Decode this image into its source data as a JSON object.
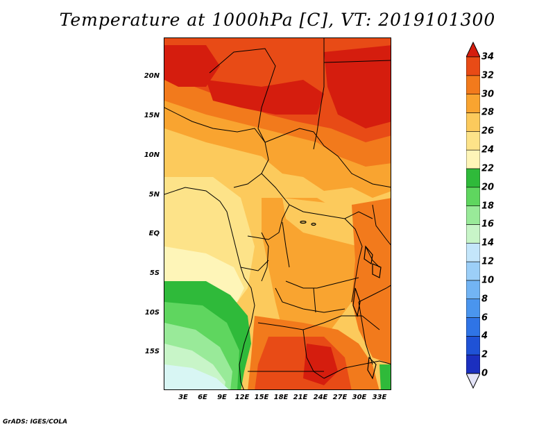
{
  "title": "Temperature at 1000hPa [C], VT: 2019101300",
  "credit": "GrADS: IGES/COLA",
  "map": {
    "latitude_labels": [
      "20N",
      "15N",
      "10N",
      "5N",
      "EQ",
      "5S",
      "10S",
      "15S"
    ],
    "longitude_labels": [
      "3E",
      "6E",
      "9E",
      "12E",
      "15E",
      "18E",
      "21E",
      "24E",
      "27E",
      "30E",
      "33E"
    ]
  },
  "colorbar": {
    "labels": [
      "0",
      "2",
      "4",
      "6",
      "8",
      "10",
      "12",
      "14",
      "16",
      "18",
      "20",
      "22",
      "24",
      "26",
      "28",
      "30",
      "32",
      "34"
    ],
    "colors": [
      "#0b0b7a",
      "#1b2fbf",
      "#1f52d6",
      "#2f74e6",
      "#4a95ee",
      "#72b4f4",
      "#9ccff8",
      "#c4e6fb",
      "#c8f5c8",
      "#99ea99",
      "#5fd65f",
      "#2fba3a",
      "#fef5b8",
      "#fde389",
      "#fcca5c",
      "#f9a430",
      "#f27a1c",
      "#e84b16",
      "#cf1c0f"
    ],
    "under_color": "#e3e3f7",
    "over_color": "#d51d0e"
  },
  "colors": {
    "hot": "#d51d0e",
    "warm": "#f27a1c",
    "mild": "#fcca5c",
    "cool_green": "#2fba3a",
    "pale_cyan": "#d8f6f4"
  }
}
